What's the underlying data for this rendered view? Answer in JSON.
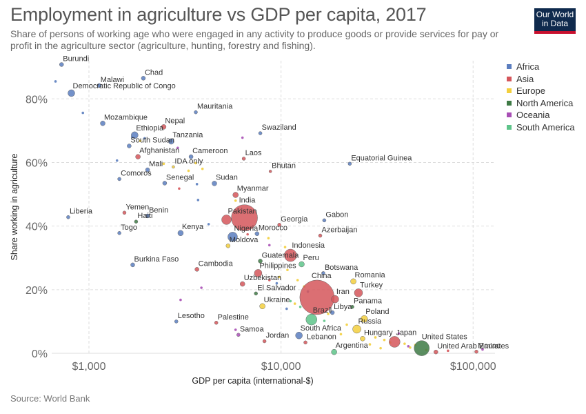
{
  "title": "Employment in agriculture vs GDP per capita, 2017",
  "subtitle": "Share of persons of working age who were engaged in any activity to produce goods or provide services for pay or profit in the agriculture sector (agriculture, hunting, forestry and fishing).",
  "logo": {
    "line1": "Our World",
    "line2": "in Data"
  },
  "source": "Source: World Bank",
  "colors": {
    "Africa": "#5b7ebf",
    "Asia": "#d5565b",
    "Europe": "#f3cf3d",
    "North America": "#3e7a45",
    "Oceania": "#a84fb5",
    "South America": "#5ec48a"
  },
  "chart_data": {
    "type": "scatter",
    "title": "Employment in agriculture vs GDP per capita, 2017",
    "xlabel": "GDP per capita (international-$)",
    "ylabel": "Share working in agriculture",
    "x_scale": "log",
    "xlim": [
      640,
      130000
    ],
    "ylim": [
      0,
      92
    ],
    "x_ticks": [
      {
        "value": 1000,
        "label": "$1,000"
      },
      {
        "value": 10000,
        "label": "$10,000"
      },
      {
        "value": 100000,
        "label": "$100,000"
      }
    ],
    "y_ticks": [
      {
        "value": 0,
        "label": "0%"
      },
      {
        "value": 20,
        "label": "20%"
      },
      {
        "value": 40,
        "label": "40%"
      },
      {
        "value": 60,
        "label": "60%"
      },
      {
        "value": 80,
        "label": "80%"
      }
    ],
    "grid": true,
    "legend": "right",
    "series_names": [
      "Africa",
      "Asia",
      "Europe",
      "North America",
      "Oceania",
      "South America"
    ],
    "points": [
      {
        "label": "Burundi",
        "region": "Africa",
        "x": 720,
        "y": 90.8,
        "r": 3
      },
      {
        "label": "Chad",
        "region": "Africa",
        "x": 1920,
        "y": 86.5,
        "r": 3
      },
      {
        "label": "Malawi",
        "region": "Africa",
        "x": 1130,
        "y": 84.2,
        "r": 3
      },
      {
        "label": "Democratic Republic of Congo",
        "region": "Africa",
        "x": 810,
        "y": 81.8,
        "r": 5
      },
      {
        "label": "Mozambique",
        "region": "Africa",
        "x": 1180,
        "y": 72.3,
        "r": 3.5
      },
      {
        "label": "Nepal",
        "region": "Asia",
        "x": 2450,
        "y": 71.2,
        "r": 3.5
      },
      {
        "label": "Mauritania",
        "region": "Africa",
        "x": 3600,
        "y": 75.8,
        "r": 2.5
      },
      {
        "label": "Ethiopia",
        "region": "Africa",
        "x": 1730,
        "y": 68.6,
        "r": 5
      },
      {
        "label": "Tanzania",
        "region": "Africa",
        "x": 2680,
        "y": 66.6,
        "r": 4
      },
      {
        "label": "South Sudan",
        "region": "Africa",
        "x": 1620,
        "y": 65.2,
        "r": 3
      },
      {
        "label": "Swaziland",
        "region": "Africa",
        "x": 7800,
        "y": 69.2,
        "r": 2.5
      },
      {
        "label": "Afghanistan",
        "region": "Asia",
        "x": 1800,
        "y": 61.8,
        "r": 3.5
      },
      {
        "label": "Cameroon",
        "region": "Africa",
        "x": 3400,
        "y": 61.8,
        "r": 3
      },
      {
        "label": "Laos",
        "region": "Asia",
        "x": 6400,
        "y": 61.2,
        "r": 2.5
      },
      {
        "label": "Equatorial Guinea",
        "region": "Africa",
        "x": 22800,
        "y": 59.6,
        "r": 2.5
      },
      {
        "label": "Mali",
        "region": "Africa",
        "x": 2020,
        "y": 57.7,
        "r": 3
      },
      {
        "label": "IDA only",
        "region": "Europe",
        "x": 2750,
        "y": 58.6,
        "r": 2
      },
      {
        "label": "Bhutan",
        "region": "Asia",
        "x": 8800,
        "y": 57.2,
        "r": 2
      },
      {
        "label": "Comoros",
        "region": "Africa",
        "x": 1440,
        "y": 54.8,
        "r": 2.5
      },
      {
        "label": "Senegal",
        "region": "Africa",
        "x": 2480,
        "y": 53.5,
        "r": 3
      },
      {
        "label": "Sudan",
        "region": "Africa",
        "x": 4500,
        "y": 53.4,
        "r": 3.5
      },
      {
        "label": "Myanmar",
        "region": "Asia",
        "x": 5800,
        "y": 49.8,
        "r": 4
      },
      {
        "label": "Liberia",
        "region": "Africa",
        "x": 780,
        "y": 42.8,
        "r": 2.5
      },
      {
        "label": "Yemen",
        "region": "Asia",
        "x": 1530,
        "y": 44.2,
        "r": 2.5
      },
      {
        "label": "Benin",
        "region": "Africa",
        "x": 2020,
        "y": 43.2,
        "r": 3
      },
      {
        "label": "Haiti",
        "region": "North America",
        "x": 1760,
        "y": 41.4,
        "r": 2.5
      },
      {
        "label": "Pakistan",
        "region": "Asia",
        "x": 5200,
        "y": 42.0,
        "r": 7
      },
      {
        "label": "India",
        "region": "Asia",
        "x": 6450,
        "y": 42.6,
        "r": 19
      },
      {
        "label": "Georgia",
        "region": "Asia",
        "x": 9800,
        "y": 40.4,
        "r": 2.5
      },
      {
        "label": "Gabon",
        "region": "Africa",
        "x": 16800,
        "y": 41.8,
        "r": 2.5
      },
      {
        "label": "Togo",
        "region": "Africa",
        "x": 1440,
        "y": 37.8,
        "r": 2.5
      },
      {
        "label": "Kenya",
        "region": "Africa",
        "x": 3000,
        "y": 37.8,
        "r": 4
      },
      {
        "label": "Nigeria",
        "region": "Africa",
        "x": 5600,
        "y": 36.6,
        "r": 7
      },
      {
        "label": "Morocco",
        "region": "Africa",
        "x": 7500,
        "y": 37.6,
        "r": 3
      },
      {
        "label": "Azerbaijan",
        "region": "Asia",
        "x": 16000,
        "y": 37.0,
        "r": 2.5
      },
      {
        "label": "Moldova",
        "region": "Europe",
        "x": 5300,
        "y": 33.8,
        "r": 3
      },
      {
        "label": "Indonesia",
        "region": "Asia",
        "x": 11200,
        "y": 30.8,
        "r": 9
      },
      {
        "label": "Guatemala",
        "region": "North America",
        "x": 7800,
        "y": 29.0,
        "r": 3
      },
      {
        "label": "Peru",
        "region": "South America",
        "x": 12800,
        "y": 28.0,
        "r": 4
      },
      {
        "label": "Burkina Faso",
        "region": "Africa",
        "x": 1690,
        "y": 27.8,
        "r": 3
      },
      {
        "label": "Cambodia",
        "region": "Asia",
        "x": 3650,
        "y": 26.4,
        "r": 3
      },
      {
        "label": "Philippines",
        "region": "Asia",
        "x": 7600,
        "y": 25.2,
        "r": 5.5
      },
      {
        "label": "Botswana",
        "region": "Africa",
        "x": 16600,
        "y": 25.2,
        "r": 2.5
      },
      {
        "label": "Uzbekistan",
        "region": "Asia",
        "x": 6300,
        "y": 21.8,
        "r": 3.5
      },
      {
        "label": "Romania",
        "region": "Europe",
        "x": 23800,
        "y": 22.6,
        "r": 4
      },
      {
        "label": "El Salvador",
        "region": "North America",
        "x": 7400,
        "y": 18.8,
        "r": 2.5
      },
      {
        "label": "China",
        "region": "Asia",
        "x": 15400,
        "y": 17.6,
        "r": 25
      },
      {
        "label": "Turkey",
        "region": "Asia",
        "x": 25300,
        "y": 19.0,
        "r": 6
      },
      {
        "label": "Iran",
        "region": "Asia",
        "x": 19100,
        "y": 17.0,
        "r": 5.5
      },
      {
        "label": "Ukraine",
        "region": "Europe",
        "x": 8000,
        "y": 14.8,
        "r": 4
      },
      {
        "label": "Panama",
        "region": "North America",
        "x": 23500,
        "y": 14.6,
        "r": 2.5
      },
      {
        "label": "Libya",
        "region": "Africa",
        "x": 18500,
        "y": 12.8,
        "r": 3
      },
      {
        "label": "Brazil",
        "region": "South America",
        "x": 14400,
        "y": 10.6,
        "r": 8
      },
      {
        "label": "Lesotho",
        "region": "Africa",
        "x": 2850,
        "y": 10.0,
        "r": 2.5
      },
      {
        "label": "Palestine",
        "region": "Asia",
        "x": 4600,
        "y": 9.6,
        "r": 2.5
      },
      {
        "label": "Poland",
        "region": "Europe",
        "x": 27100,
        "y": 10.8,
        "r": 5
      },
      {
        "label": "Russia",
        "region": "Europe",
        "x": 24800,
        "y": 7.6,
        "r": 6
      },
      {
        "label": "South Africa",
        "region": "Africa",
        "x": 12400,
        "y": 5.6,
        "r": 5
      },
      {
        "label": "Samoa",
        "region": "Oceania",
        "x": 6000,
        "y": 5.8,
        "r": 2.5
      },
      {
        "label": "Hungary",
        "region": "Europe",
        "x": 26600,
        "y": 4.6,
        "r": 3.5
      },
      {
        "label": "Jordan",
        "region": "Asia",
        "x": 8200,
        "y": 3.8,
        "r": 2.5
      },
      {
        "label": "Lebanon",
        "region": "Asia",
        "x": 13400,
        "y": 3.4,
        "r": 2.5
      },
      {
        "label": "Japan",
        "region": "Asia",
        "x": 39000,
        "y": 3.6,
        "r": 8
      },
      {
        "label": "United States",
        "region": "North America",
        "x": 54000,
        "y": 1.6,
        "r": 11
      },
      {
        "label": "Argentina",
        "region": "South America",
        "x": 18900,
        "y": 0.4,
        "r": 4
      },
      {
        "label": "United Arab Emirates",
        "region": "Asia",
        "x": 64000,
        "y": 0.4,
        "r": 3
      },
      {
        "label": "Macao",
        "region": "Asia",
        "x": 104000,
        "y": 0.5,
        "r": 2.5
      }
    ],
    "unlabeled_points": [
      {
        "region": "Africa",
        "x": 670,
        "y": 85.5
      },
      {
        "region": "Africa",
        "x": 930,
        "y": 75.6
      },
      {
        "region": "Africa",
        "x": 1680,
        "y": 68.0
      },
      {
        "region": "Europe",
        "x": 1850,
        "y": 66.8
      },
      {
        "region": "Africa",
        "x": 1950,
        "y": 67.6
      },
      {
        "region": "Oceania",
        "x": 2900,
        "y": 64.6
      },
      {
        "region": "Africa",
        "x": 1400,
        "y": 60.6
      },
      {
        "region": "Europe",
        "x": 2450,
        "y": 59.6
      },
      {
        "region": "Europe",
        "x": 3600,
        "y": 59.8
      },
      {
        "region": "Europe",
        "x": 3900,
        "y": 58.0
      },
      {
        "region": "Oceania",
        "x": 6300,
        "y": 67.8
      },
      {
        "region": "Europe",
        "x": 3300,
        "y": 57.4
      },
      {
        "region": "Asia",
        "x": 2950,
        "y": 51.8
      },
      {
        "region": "Africa",
        "x": 3700,
        "y": 48.2
      },
      {
        "region": "Africa",
        "x": 3650,
        "y": 53.2
      },
      {
        "region": "Europe",
        "x": 5800,
        "y": 48.0
      },
      {
        "region": "Africa",
        "x": 4200,
        "y": 40.6
      },
      {
        "region": "Asia",
        "x": 6700,
        "y": 37.4
      },
      {
        "region": "Europe",
        "x": 8600,
        "y": 36.2
      },
      {
        "region": "Oceania",
        "x": 8700,
        "y": 34.0
      },
      {
        "region": "Europe",
        "x": 10500,
        "y": 33.4
      },
      {
        "region": "Europe",
        "x": 10800,
        "y": 26.2
      },
      {
        "region": "Europe",
        "x": 9800,
        "y": 24.0
      },
      {
        "region": "Europe",
        "x": 12200,
        "y": 23.0
      },
      {
        "region": "Oceania",
        "x": 3850,
        "y": 20.6
      },
      {
        "region": "Africa",
        "x": 9500,
        "y": 22.0
      },
      {
        "region": "Europe",
        "x": 13200,
        "y": 21.0
      },
      {
        "region": "Africa",
        "x": 13800,
        "y": 19.4
      },
      {
        "region": "South America",
        "x": 11200,
        "y": 16.4
      },
      {
        "region": "Europe",
        "x": 11800,
        "y": 15.6
      },
      {
        "region": "South America",
        "x": 12600,
        "y": 14.6
      },
      {
        "region": "Africa",
        "x": 10700,
        "y": 14.0
      },
      {
        "region": "Oceania",
        "x": 3000,
        "y": 16.8
      },
      {
        "region": "Europe",
        "x": 17600,
        "y": 12.4
      },
      {
        "region": "South America",
        "x": 16800,
        "y": 10.2
      },
      {
        "region": "Europe",
        "x": 22000,
        "y": 9.0
      },
      {
        "region": "Europe",
        "x": 20500,
        "y": 6.0
      },
      {
        "region": "Oceania",
        "x": 41000,
        "y": 6.2
      },
      {
        "region": "Europe",
        "x": 31000,
        "y": 5.0
      },
      {
        "region": "Europe",
        "x": 34500,
        "y": 4.2
      },
      {
        "region": "Europe",
        "x": 37000,
        "y": 3.4
      },
      {
        "region": "Europe",
        "x": 44000,
        "y": 3.0
      },
      {
        "region": "Europe",
        "x": 47000,
        "y": 1.8
      },
      {
        "region": "Europe",
        "x": 50000,
        "y": 2.6
      },
      {
        "region": "Oceania",
        "x": 46000,
        "y": 2.2
      },
      {
        "region": "Europe",
        "x": 57000,
        "y": 1.0
      },
      {
        "region": "Asia",
        "x": 74000,
        "y": 0.8
      },
      {
        "region": "Oceania",
        "x": 112000,
        "y": 1.2
      },
      {
        "region": "Europe",
        "x": 29000,
        "y": 2.8
      },
      {
        "region": "Europe",
        "x": 33000,
        "y": 1.6
      },
      {
        "region": "Asia",
        "x": 8700,
        "y": 23.0
      },
      {
        "region": "Oceania",
        "x": 5800,
        "y": 7.4
      }
    ]
  }
}
